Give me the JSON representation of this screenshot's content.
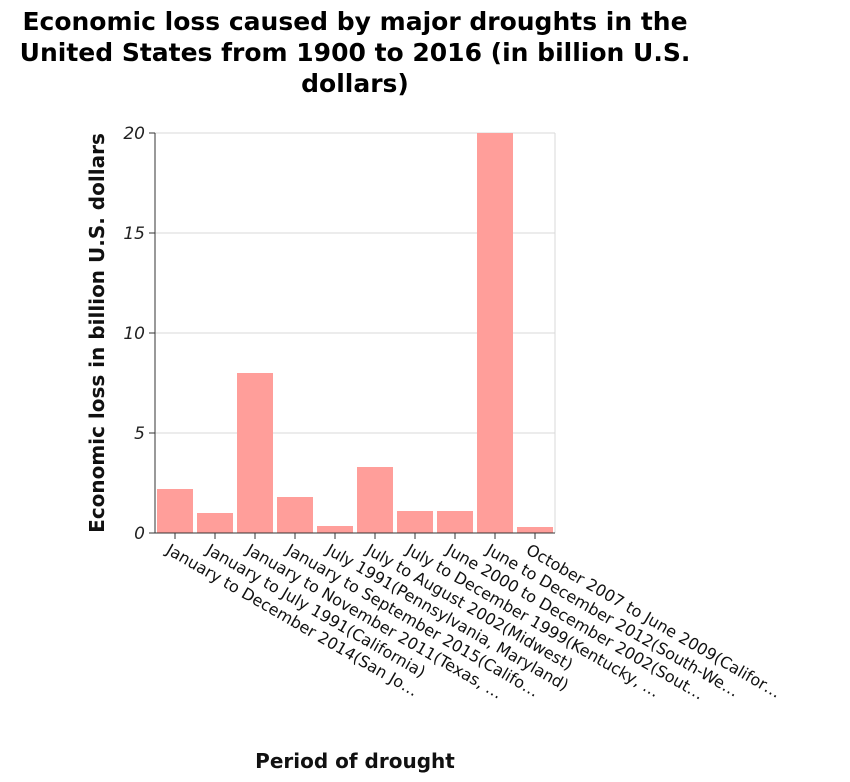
{
  "chart_data": {
    "type": "bar",
    "title": "Economic loss caused by major droughts in the United States from 1900 to 2016 (in billion U.S. dollars)",
    "xlabel": "Period of drought",
    "ylabel": "Economic loss in billion U.S. dollars",
    "ylim": [
      0,
      20
    ],
    "yticks": [
      0,
      5,
      10,
      15,
      20
    ],
    "grid": true,
    "categories": [
      "January to December 2014(San Jo…",
      "January to July 1991(California)",
      "January to November 2011(Texas, …",
      "January to September 2015(Califo…",
      "July 1991(Pennsylvania, Maryland)",
      "July to August 2002(Midwest)",
      "July to December 1999(Kentucky, …",
      "June 2000 to December 2002(Sout…",
      "June to December 2012(South-We…",
      "October 2007 to June 2009(Califor…"
    ],
    "values": [
      2.2,
      1.0,
      8.0,
      1.8,
      0.35,
      3.3,
      1.1,
      1.1,
      20.0,
      0.3
    ],
    "bar_color": "#ff9e9a"
  }
}
